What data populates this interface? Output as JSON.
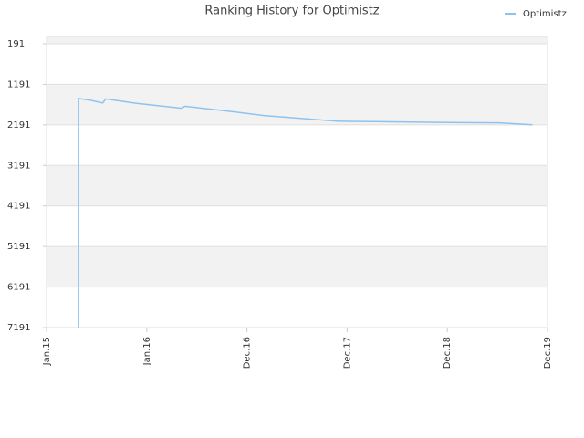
{
  "chart_data": {
    "type": "line",
    "title": "Ranking History for Optimistz",
    "x": [
      0.32,
      0.32,
      0.45,
      0.56,
      0.59,
      0.9,
      1.35,
      1.38,
      1.81,
      2.17,
      2.54,
      2.9,
      3.26,
      3.9,
      4.52,
      4.85
    ],
    "series": [
      {
        "name": "Optimistz",
        "color": "#8ec3f0",
        "values": [
          7191,
          1540,
          1590,
          1650,
          1550,
          1660,
          1780,
          1730,
          1850,
          1960,
          2030,
          2100,
          2110,
          2130,
          2140,
          2190
        ]
      }
    ],
    "xlim": [
      0,
      5
    ],
    "xticks": [
      {
        "value": 0,
        "label": "Jan.15"
      },
      {
        "value": 1,
        "label": "Jan.16"
      },
      {
        "value": 2,
        "label": "Dec.16"
      },
      {
        "value": 3,
        "label": "Dec.17"
      },
      {
        "value": 4,
        "label": "Dec.18"
      },
      {
        "value": 5,
        "label": "Dec.19"
      }
    ],
    "ylim": [
      7191,
      11
    ],
    "yticks": [
      191,
      1191,
      2191,
      3191,
      4191,
      5191,
      6191,
      7191
    ],
    "grid": true,
    "legend": "top-right"
  }
}
